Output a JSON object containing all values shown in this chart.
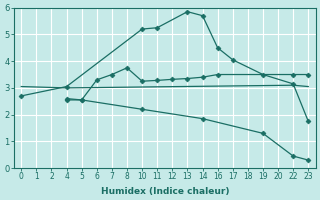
{
  "xlabel": "Humidex (Indice chaleur)",
  "bg_color": "#c6eae8",
  "grid_color": "#ffffff",
  "line_color": "#1a6e64",
  "xlim": [
    -0.5,
    19.5
  ],
  "ylim": [
    0,
    6
  ],
  "xtick_positions": [
    0,
    1,
    2,
    3,
    4,
    5,
    6,
    7,
    8,
    9,
    10,
    11,
    12,
    13,
    14,
    15,
    16,
    17,
    18,
    19
  ],
  "xtick_labels": [
    "0",
    "1",
    "2",
    "4",
    "5",
    "6",
    "7",
    "8",
    "10",
    "11",
    "12",
    "13",
    "14",
    "16",
    "17",
    "18",
    "19",
    "20",
    "22",
    "23"
  ],
  "xval_map": {
    "0": 0,
    "1": 1,
    "2": 2,
    "4": 3,
    "5": 4,
    "6": 5,
    "7": 6,
    "8": 7,
    "10": 8,
    "11": 9,
    "12": 10,
    "13": 11,
    "14": 12,
    "16": 13,
    "17": 14,
    "18": 15,
    "19": 16,
    "20": 17,
    "22": 18,
    "23": 19
  },
  "yticks": [
    0,
    1,
    2,
    3,
    4,
    5,
    6
  ],
  "lines": [
    {
      "xvals": [
        0,
        4,
        10,
        11,
        13,
        14,
        16,
        17,
        19,
        22,
        23
      ],
      "y": [
        2.7,
        3.05,
        5.2,
        5.25,
        5.85,
        5.7,
        4.5,
        4.05,
        3.5,
        3.15,
        1.75
      ],
      "marker": "D",
      "markersize": 2.5
    },
    {
      "xvals": [
        4,
        5,
        6,
        7,
        8,
        10,
        11,
        12,
        13,
        14,
        16,
        22,
        23
      ],
      "y": [
        2.55,
        2.55,
        3.3,
        3.5,
        3.75,
        3.25,
        3.28,
        3.32,
        3.35,
        3.4,
        3.5,
        3.5,
        3.5
      ],
      "marker": "D",
      "markersize": 2.5
    },
    {
      "xvals": [
        0,
        4,
        22,
        23
      ],
      "y": [
        3.05,
        3.0,
        3.1,
        3.05
      ],
      "marker": null,
      "markersize": 0
    },
    {
      "xvals": [
        4,
        5,
        10,
        14,
        19,
        22,
        23
      ],
      "y": [
        2.6,
        2.55,
        2.2,
        1.85,
        1.3,
        0.45,
        0.3
      ],
      "marker": "D",
      "markersize": 2.5
    }
  ]
}
